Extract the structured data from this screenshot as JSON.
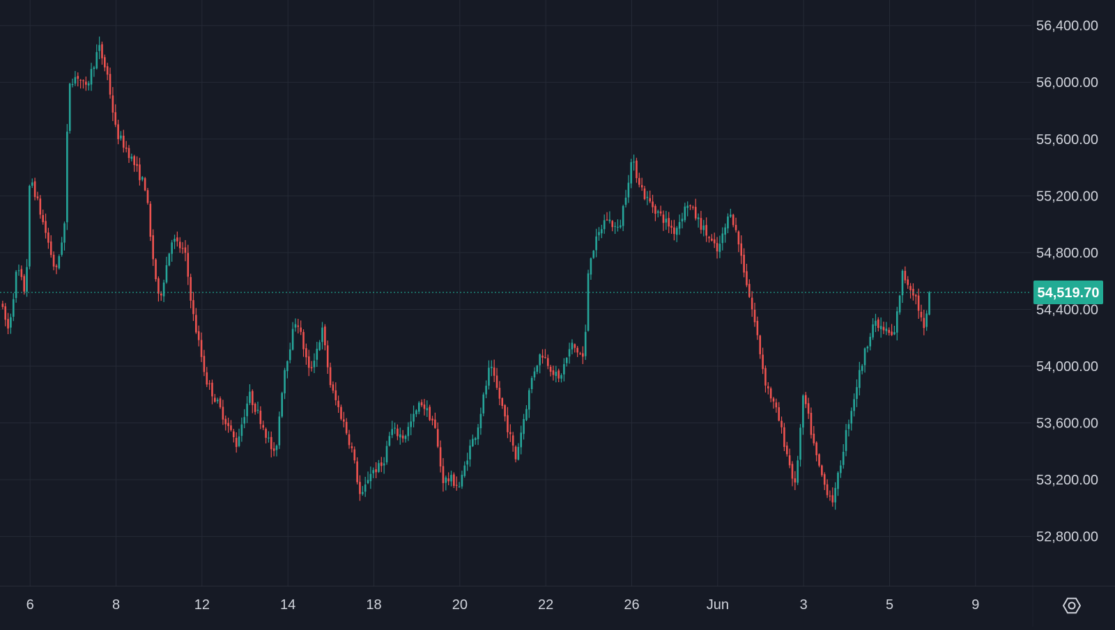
{
  "colors": {
    "background": "#161a25",
    "grid": "#252a36",
    "axis_text": "#d1d4dc",
    "up": "#26a69a",
    "down": "#ef5350",
    "price_line": "#22ab94",
    "price_badge": "#22ab94",
    "price_badge_text": "#ffffff"
  },
  "chart_data": {
    "type": "candlestick",
    "y_ticks": [
      "56,400.00",
      "56,000.00",
      "55,600.00",
      "55,200.00",
      "54,800.00",
      "54,400.00",
      "54,000.00",
      "53,600.00",
      "53,200.00",
      "52,800.00"
    ],
    "y_tick_values": [
      56400,
      56000,
      55600,
      55200,
      54800,
      54400,
      54000,
      53600,
      53200,
      52800
    ],
    "ylim": [
      52450,
      56580
    ],
    "x_ticks": [
      "6",
      "8",
      "12",
      "14",
      "18",
      "20",
      "22",
      "26",
      "Jun",
      "3",
      "5",
      "9"
    ],
    "x_tick_index": [
      0,
      2,
      4,
      6,
      8,
      10,
      12,
      14,
      16,
      18,
      20,
      22
    ],
    "x_index_range": [
      -0.7,
      23.3
    ],
    "current_price": 54519.7,
    "current_price_label": "54,519.70",
    "key_points": [
      [
        -0.7,
        54450
      ],
      [
        -0.5,
        54250
      ],
      [
        -0.3,
        54700
      ],
      [
        -0.1,
        54500
      ],
      [
        0.0,
        55350
      ],
      [
        0.4,
        54900
      ],
      [
        0.6,
        54650
      ],
      [
        0.8,
        55000
      ],
      [
        0.9,
        56000
      ],
      [
        1.1,
        56050
      ],
      [
        1.3,
        55950
      ],
      [
        1.6,
        56250
      ],
      [
        1.8,
        56050
      ],
      [
        2.0,
        55650
      ],
      [
        2.3,
        55500
      ],
      [
        2.7,
        55250
      ],
      [
        2.8,
        54900
      ],
      [
        3.0,
        54450
      ],
      [
        3.3,
        54900
      ],
      [
        3.6,
        54800
      ],
      [
        3.8,
        54350
      ],
      [
        4.1,
        53900
      ],
      [
        4.5,
        53650
      ],
      [
        4.8,
        53450
      ],
      [
        5.1,
        53800
      ],
      [
        5.4,
        53600
      ],
      [
        5.7,
        53350
      ],
      [
        5.9,
        53950
      ],
      [
        6.2,
        54350
      ],
      [
        6.5,
        53950
      ],
      [
        6.8,
        54250
      ],
      [
        7.0,
        53850
      ],
      [
        7.3,
        53600
      ],
      [
        7.5,
        53400
      ],
      [
        7.7,
        53050
      ],
      [
        7.9,
        53250
      ],
      [
        8.2,
        53300
      ],
      [
        8.4,
        53550
      ],
      [
        8.7,
        53500
      ],
      [
        9.1,
        53750
      ],
      [
        9.4,
        53600
      ],
      [
        9.6,
        53200
      ],
      [
        9.8,
        53200
      ],
      [
        10.0,
        53150
      ],
      [
        10.2,
        53400
      ],
      [
        10.4,
        53550
      ],
      [
        10.7,
        54000
      ],
      [
        11.0,
        53700
      ],
      [
        11.3,
        53350
      ],
      [
        11.7,
        53950
      ],
      [
        11.9,
        54100
      ],
      [
        12.3,
        53900
      ],
      [
        12.6,
        54150
      ],
      [
        12.9,
        54050
      ],
      [
        13.0,
        54750
      ],
      [
        13.4,
        55050
      ],
      [
        13.7,
        54950
      ],
      [
        14.0,
        55450
      ],
      [
        14.3,
        55200
      ],
      [
        14.7,
        55050
      ],
      [
        15.0,
        54950
      ],
      [
        15.3,
        55150
      ],
      [
        15.7,
        54950
      ],
      [
        16.0,
        54800
      ],
      [
        16.3,
        55100
      ],
      [
        16.5,
        54850
      ],
      [
        16.7,
        54550
      ],
      [
        16.9,
        54250
      ],
      [
        17.1,
        53900
      ],
      [
        17.4,
        53650
      ],
      [
        17.6,
        53400
      ],
      [
        17.8,
        53150
      ],
      [
        18.0,
        53800
      ],
      [
        18.3,
        53350
      ],
      [
        18.5,
        53150
      ],
      [
        18.7,
        53050
      ],
      [
        19.0,
        53550
      ],
      [
        19.3,
        53950
      ],
      [
        19.6,
        54300
      ],
      [
        19.9,
        54250
      ],
      [
        20.1,
        54200
      ],
      [
        20.3,
        54650
      ],
      [
        20.6,
        54500
      ],
      [
        20.8,
        54250
      ],
      [
        20.98,
        54519.7
      ]
    ]
  },
  "ui": {
    "settings_icon": "settings-icon"
  }
}
